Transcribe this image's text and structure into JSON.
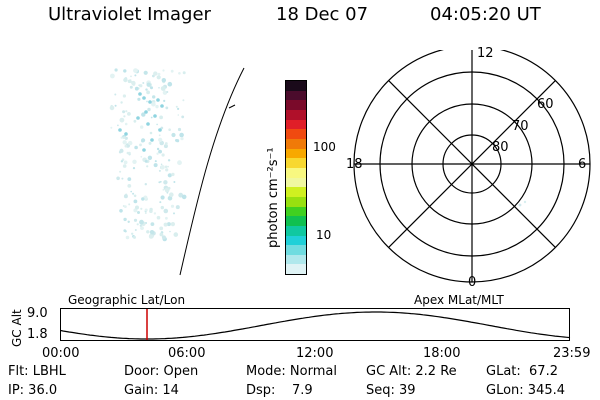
{
  "header": {
    "instrument": "Ultraviolet Imager",
    "date": "18 Dec 07",
    "time": "04:05:20 UT"
  },
  "colorbar": {
    "label": "photon cm⁻²s⁻¹",
    "ticks": [
      "100",
      "10"
    ],
    "colors": [
      "#1a0a1a",
      "#4b0c2c",
      "#7a0a2a",
      "#b0102a",
      "#e01e28",
      "#f04a10",
      "#f07a08",
      "#f8a800",
      "#f8d830",
      "#f8f880",
      "#f0f8a0",
      "#d0f020",
      "#98e010",
      "#40d020",
      "#10c050",
      "#10c8a0",
      "#20d0d8",
      "#70dce0",
      "#b0e8ec",
      "#dff3f5"
    ]
  },
  "polar": {
    "labels": [
      "12",
      "18",
      "6",
      "0",
      "60",
      "70",
      "80"
    ]
  },
  "timeline": {
    "left_title": "Geographic Lat/Lon",
    "right_title": "Apex  MLat/MLT",
    "yaxis_label": "GC Alt",
    "yticks": [
      "9.0",
      "1.8"
    ],
    "xticks": [
      "00:00",
      "06:00",
      "12:00",
      "18:00",
      "23:59"
    ],
    "marker_color": "#cc0000"
  },
  "info": {
    "flt": "Flt: LBHL",
    "ip": "IP: 36.0",
    "door": "Door: Open",
    "gain": "Gain: 14",
    "mode": "Mode: Normal",
    "dsp": "Dsp:    7.9",
    "gcalt": "GC Alt: 2.2 Re",
    "seq": "Seq: 39",
    "glat": "GLat:  67.2",
    "glon": "GLon: 345.4"
  }
}
